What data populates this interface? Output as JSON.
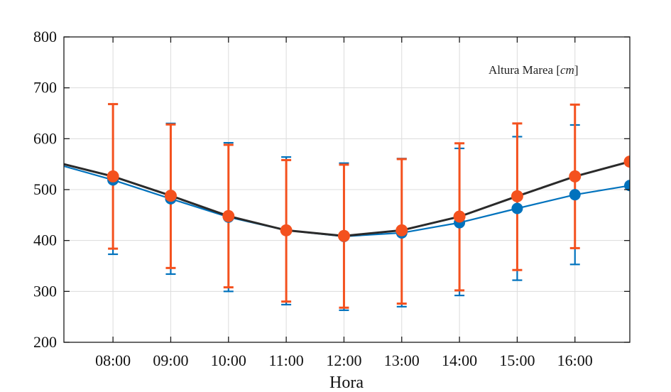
{
  "chart_data": {
    "type": "line",
    "title": "",
    "xlabel": "Hora",
    "ylabel": "",
    "legend_text": "Altura Marea",
    "legend_unit": "cm",
    "legend_position": "top-right",
    "grid": true,
    "x_domain": [
      7.15,
      16.95
    ],
    "ylim": [
      200,
      800
    ],
    "yticks": [
      200,
      300,
      400,
      500,
      600,
      700,
      800
    ],
    "x_ticks": [
      {
        "x": 8,
        "label": "08:00"
      },
      {
        "x": 9,
        "label": "09:00"
      },
      {
        "x": 10,
        "label": "10:00"
      },
      {
        "x": 11,
        "label": "11:00"
      },
      {
        "x": 12,
        "label": "12:00"
      },
      {
        "x": 13,
        "label": "13:00"
      },
      {
        "x": 14,
        "label": "14:00"
      },
      {
        "x": 15,
        "label": "15:00"
      },
      {
        "x": 16,
        "label": "16:00"
      }
    ],
    "series": [
      {
        "name": "blue",
        "color": "#0072BD",
        "line": [
          [
            7.15,
            546
          ],
          [
            8,
            519
          ],
          [
            9,
            482
          ],
          [
            10,
            446
          ],
          [
            11,
            420
          ],
          [
            12,
            408
          ],
          [
            13,
            415
          ],
          [
            14,
            435
          ],
          [
            15,
            463
          ],
          [
            16,
            490
          ],
          [
            16.95,
            508
          ]
        ],
        "points": [
          {
            "x": 8,
            "y": 519,
            "low": 373,
            "high": 668
          },
          {
            "x": 9,
            "y": 482,
            "low": 334,
            "high": 630
          },
          {
            "x": 10,
            "y": 446,
            "low": 300,
            "high": 592
          },
          {
            "x": 11,
            "y": 420,
            "low": 274,
            "high": 564
          },
          {
            "x": 12,
            "y": 408,
            "low": 263,
            "high": 552
          },
          {
            "x": 13,
            "y": 415,
            "low": 270,
            "high": 561
          },
          {
            "x": 14,
            "y": 435,
            "low": 292,
            "high": 581
          },
          {
            "x": 15,
            "y": 463,
            "low": 322,
            "high": 604
          },
          {
            "x": 16,
            "y": 490,
            "low": 353,
            "high": 627
          },
          {
            "x": 16.95,
            "y": 508
          }
        ]
      },
      {
        "name": "black",
        "color": "#2a2a2a",
        "line": [
          [
            7.15,
            550
          ],
          [
            8,
            526
          ],
          [
            9,
            488
          ],
          [
            10,
            448
          ],
          [
            11,
            420
          ],
          [
            12,
            409
          ],
          [
            13,
            420
          ],
          [
            14,
            447
          ],
          [
            15,
            487
          ],
          [
            16,
            526
          ],
          [
            16.95,
            555
          ]
        ],
        "points": []
      },
      {
        "name": "orange",
        "color": "#F4511E",
        "line": [],
        "points": [
          {
            "x": 8,
            "y": 526,
            "low": 384,
            "high": 668
          },
          {
            "x": 9,
            "y": 488,
            "low": 346,
            "high": 628
          },
          {
            "x": 10,
            "y": 448,
            "low": 308,
            "high": 588
          },
          {
            "x": 11,
            "y": 420,
            "low": 280,
            "high": 558
          },
          {
            "x": 12,
            "y": 409,
            "low": 268,
            "high": 549
          },
          {
            "x": 13,
            "y": 420,
            "low": 276,
            "high": 560
          },
          {
            "x": 14,
            "y": 447,
            "low": 302,
            "high": 591
          },
          {
            "x": 15,
            "y": 487,
            "low": 342,
            "high": 630
          },
          {
            "x": 16,
            "y": 526,
            "low": 385,
            "high": 667
          },
          {
            "x": 16.95,
            "y": 555
          }
        ]
      }
    ]
  }
}
